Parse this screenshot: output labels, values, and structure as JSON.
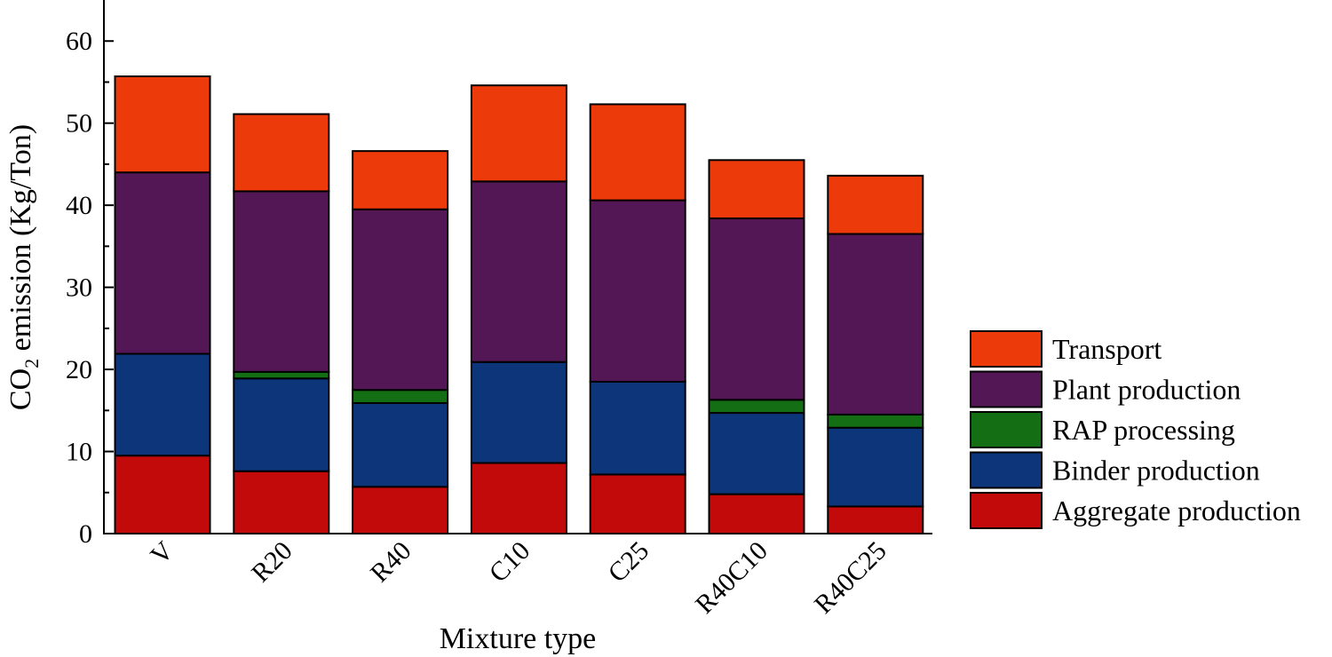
{
  "chart_data": {
    "type": "bar",
    "stacked": true,
    "title": "",
    "xlabel": "Mixture type",
    "ylabel": {
      "prefix": "CO",
      "subscript": "2",
      "suffix": " emission (Kg/Ton)"
    },
    "ylim": [
      0,
      65
    ],
    "yticks": [
      0,
      10,
      20,
      30,
      40,
      50,
      60
    ],
    "ytick_labels": [
      "0",
      "10",
      "20",
      "30",
      "40",
      "50",
      "60"
    ],
    "categories": [
      "V",
      "R20",
      "R40",
      "C10",
      "C25",
      "R40C10",
      "R40C25"
    ],
    "grid": false,
    "legend_position": "right",
    "series": [
      {
        "name": "Aggregate production",
        "color": "#c30a0a",
        "values": [
          9.5,
          7.6,
          5.7,
          8.6,
          7.2,
          4.8,
          3.3
        ]
      },
      {
        "name": "Binder production",
        "color": "#0c357a",
        "values": [
          12.4,
          11.3,
          10.2,
          12.3,
          11.3,
          9.9,
          9.6
        ]
      },
      {
        "name": "RAP processing",
        "color": "#146e14",
        "values": [
          0,
          0.8,
          1.6,
          0,
          0,
          1.6,
          1.6
        ]
      },
      {
        "name": "Plant production",
        "color": "#531755",
        "values": [
          22.1,
          22.0,
          22.0,
          22.0,
          22.1,
          22.1,
          22.0
        ]
      },
      {
        "name": "Transport",
        "color": "#ec3a0b",
        "values": [
          11.7,
          9.4,
          7.1,
          11.7,
          11.7,
          7.1,
          7.1
        ]
      }
    ]
  }
}
